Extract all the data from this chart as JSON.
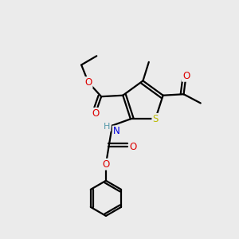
{
  "background_color": "#ebebeb",
  "atom_colors": {
    "C": "#000000",
    "H": "#5599aa",
    "N": "#0000dd",
    "O": "#dd0000",
    "S": "#bbbb00"
  },
  "bond_color": "#000000"
}
